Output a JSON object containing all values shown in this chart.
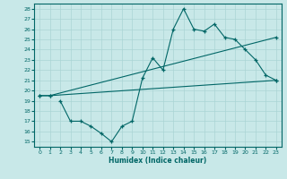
{
  "xlabel": "Humidex (Indice chaleur)",
  "background_color": "#c8e8e8",
  "line_color": "#006666",
  "grid_color": "#aad4d4",
  "xlim": [
    -0.5,
    23.5
  ],
  "ylim": [
    14.5,
    28.5
  ],
  "yticks": [
    15,
    16,
    17,
    18,
    19,
    20,
    21,
    22,
    23,
    24,
    25,
    26,
    27,
    28
  ],
  "xticks": [
    0,
    1,
    2,
    3,
    4,
    5,
    6,
    7,
    8,
    9,
    10,
    11,
    12,
    13,
    14,
    15,
    16,
    17,
    18,
    19,
    20,
    21,
    22,
    23
  ],
  "line1_x": [
    0,
    1,
    23
  ],
  "line1_y": [
    19.5,
    19.5,
    21.0
  ],
  "line2_x": [
    0,
    1,
    23
  ],
  "line2_y": [
    19.5,
    19.5,
    25.2
  ],
  "line3_x": [
    2,
    3,
    4,
    5,
    6,
    7,
    8,
    9,
    10,
    11,
    12,
    13,
    14,
    15,
    16,
    17,
    18,
    19,
    20,
    21,
    22,
    23
  ],
  "line3_y": [
    19.0,
    17.0,
    17.0,
    16.5,
    15.8,
    15.0,
    16.5,
    17.0,
    21.2,
    23.2,
    22.0,
    26.0,
    28.0,
    26.0,
    25.8,
    26.5,
    25.2,
    25.0,
    24.0,
    23.0,
    21.5,
    21.0
  ]
}
